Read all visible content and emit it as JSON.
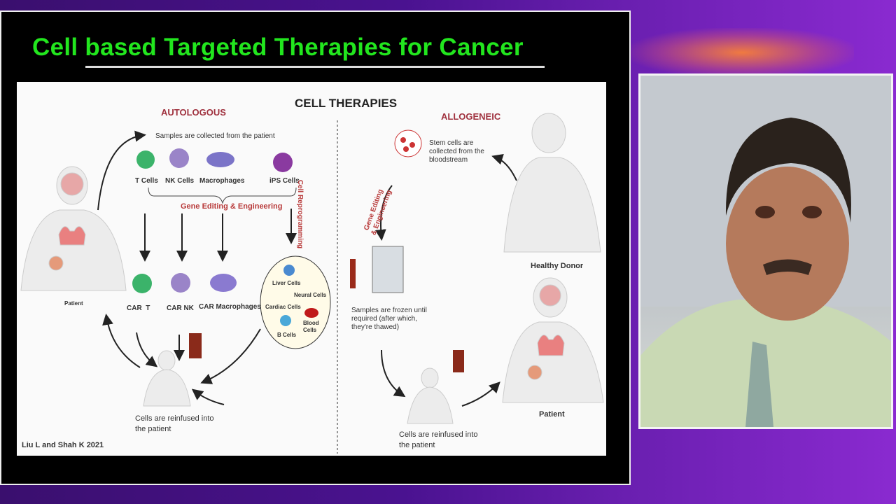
{
  "slide": {
    "title": "Cell based Targeted Therapies for Cancer",
    "heading": "CELL THERAPIES",
    "citation": "Liu L and Shah K 2021",
    "autologous": {
      "label": "AUTOLOGOUS",
      "collected": "Samples are collected from the patient",
      "cells": [
        "T Cells",
        "NK Cells",
        "Macrophages",
        "iPS Cells"
      ],
      "engineering": "Gene Editing & Engineering",
      "reprogramming": "Cell Reprogramming",
      "car_cells": [
        "CAR  T",
        "CAR NK",
        "CAR Macrophages"
      ],
      "derived": [
        "Liver Cells",
        "Neural Cells",
        "Cardiac Cells",
        "B Cells",
        "Blood Cells"
      ],
      "patient": "Patient",
      "reinfused": "Cells are reinfused into the patient"
    },
    "allogeneic": {
      "label": "ALLOGENEIC",
      "collected": "Stem cells are collected from the bloodstream",
      "engineering": "Gene Editing & Engineering",
      "donor": "Healthy Donor",
      "frozen": "Samples are frozen until required (after which, they're thawed)",
      "patient": "Patient",
      "reinfused": "Cells are reinfused into the patient"
    }
  }
}
